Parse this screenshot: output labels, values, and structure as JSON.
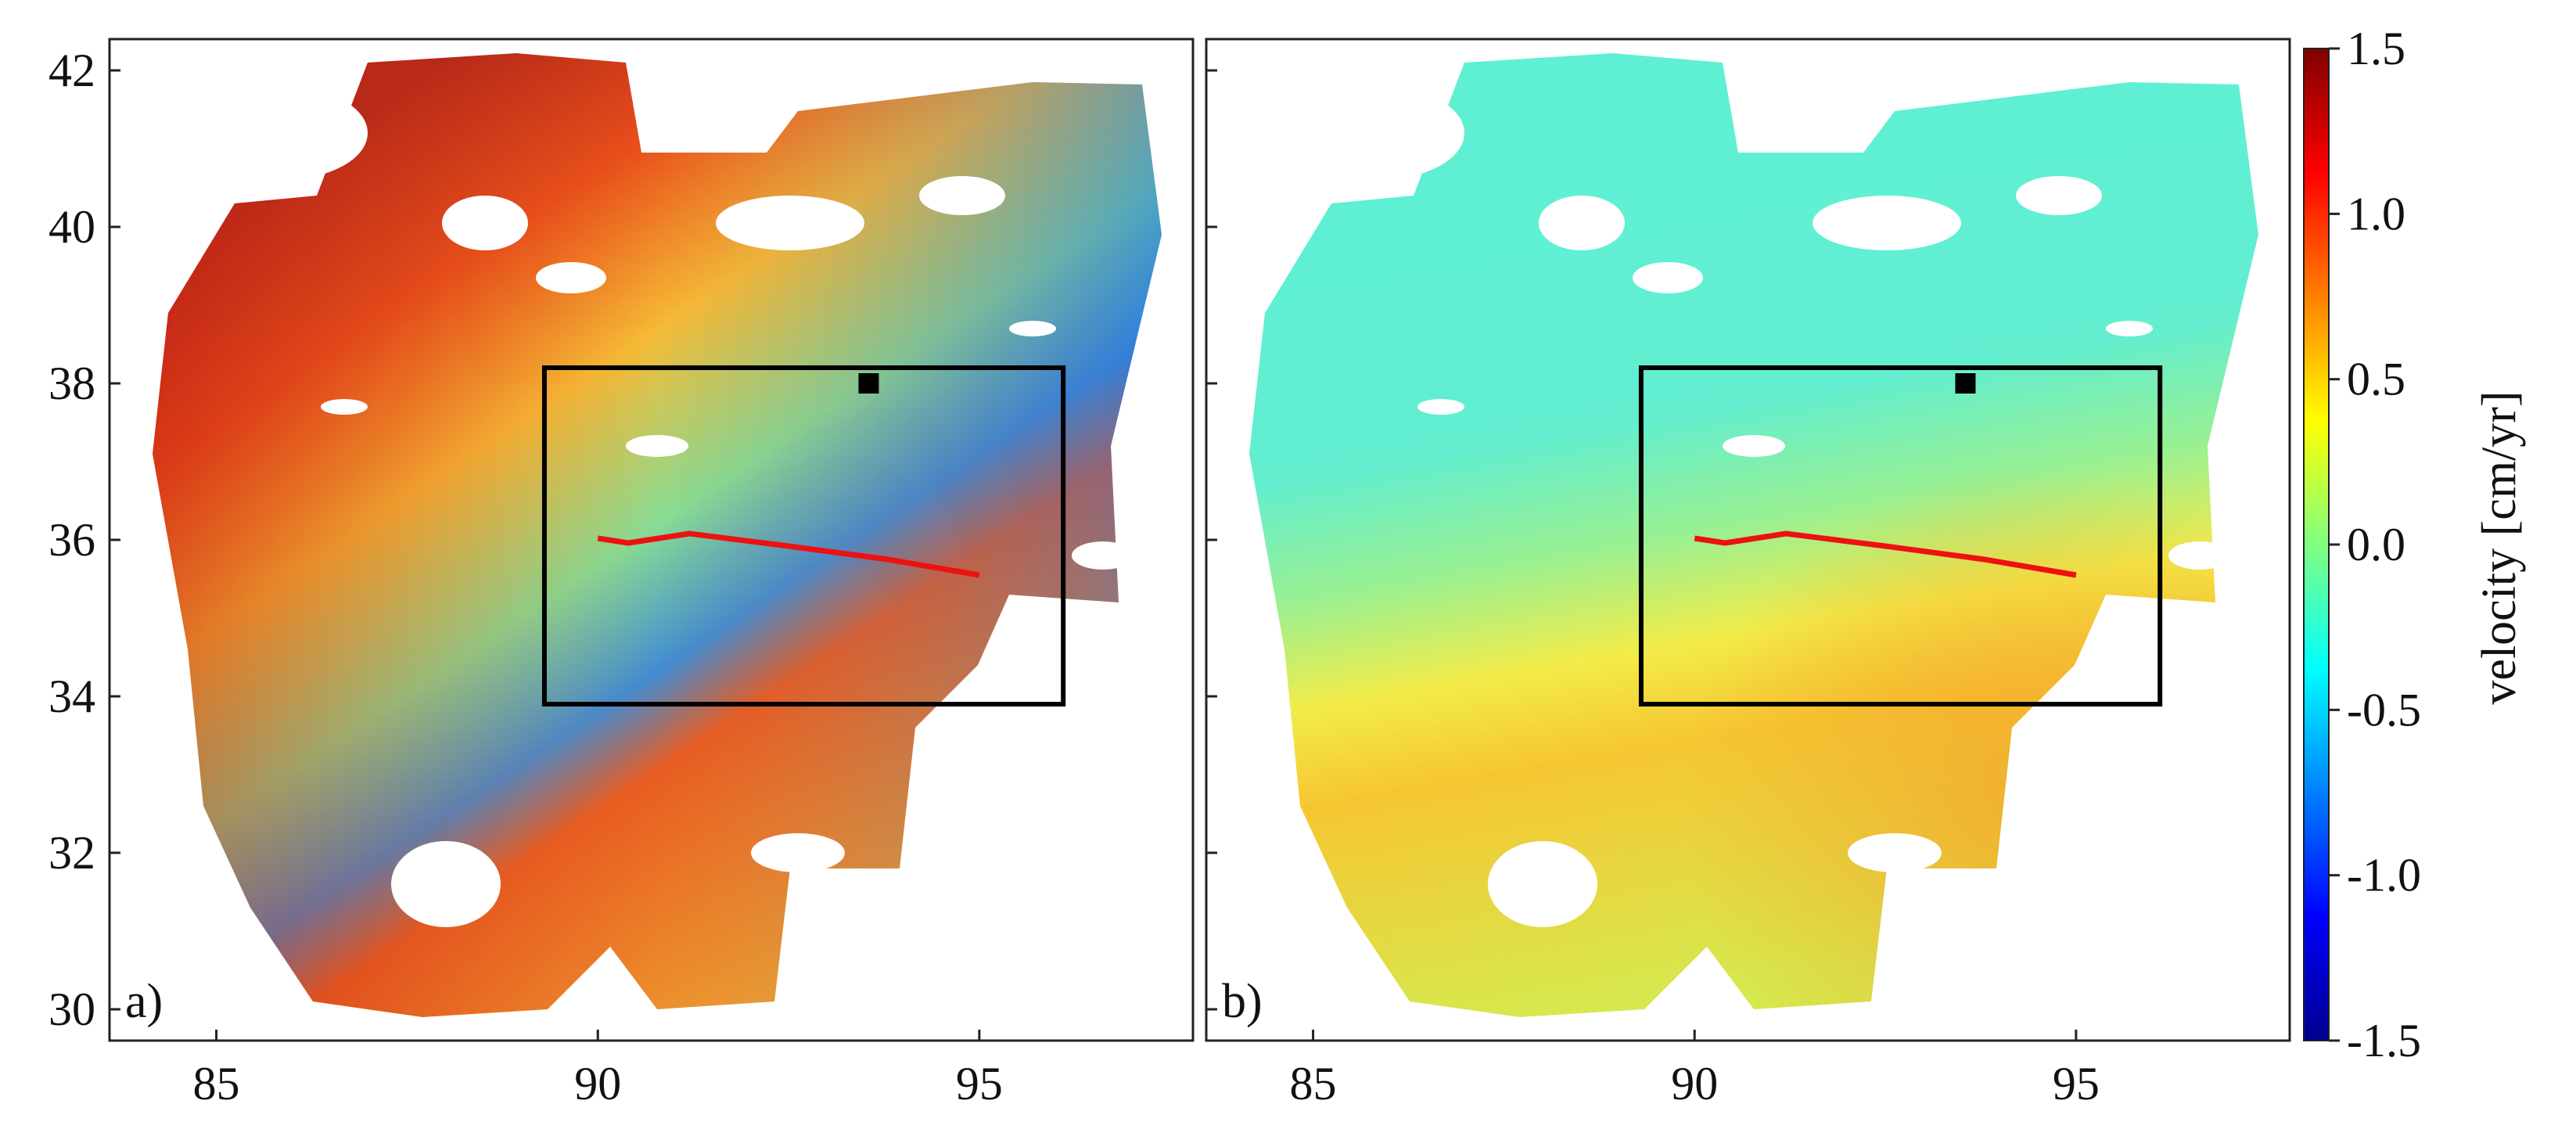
{
  "panels": [
    {
      "label": "a)"
    },
    {
      "label": "b)"
    }
  ],
  "axes": {
    "lon_ticks": [
      85,
      90,
      95
    ],
    "lat_ticks": [
      30,
      32,
      34,
      36,
      38,
      40,
      42
    ],
    "lon_range": [
      83.6,
      97.8
    ],
    "lat_range": [
      29.6,
      42.4
    ]
  },
  "study_box": {
    "lon": [
      89.3,
      96.1
    ],
    "lat": [
      33.9,
      38.2
    ]
  },
  "fault_trace": [
    [
      90.0,
      36.02
    ],
    [
      90.4,
      35.96
    ],
    [
      91.2,
      36.08
    ],
    [
      92.5,
      35.92
    ],
    [
      93.8,
      35.75
    ],
    [
      95.0,
      35.55
    ]
  ],
  "gps_station": {
    "lon": 93.55,
    "lat": 38.0
  },
  "colorbar": {
    "label": "velocity [cm/yr]",
    "min": -1.5,
    "max": 1.5,
    "ticks": [
      "1.5",
      "1.0",
      "0.5",
      "0.0",
      "-0.5",
      "-1.0",
      "-1.5"
    ],
    "colormap": "jet",
    "colors": [
      "#00008f",
      "#0000ff",
      "#0080ff",
      "#00ffff",
      "#80ff80",
      "#ffff00",
      "#ff8000",
      "#ff0000",
      "#800000"
    ]
  },
  "styles": {
    "fault_color": "#ee1111",
    "box_color": "#000000",
    "station_color": "#000000"
  }
}
